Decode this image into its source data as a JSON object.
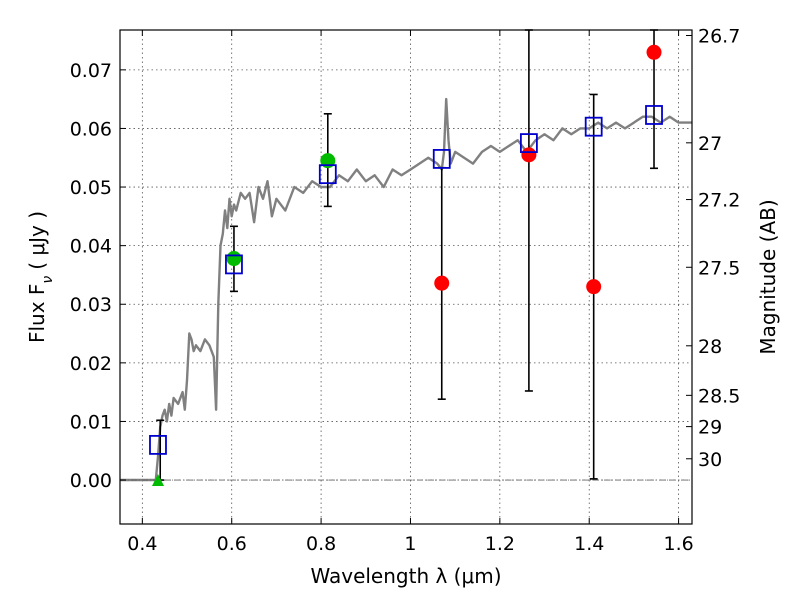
{
  "chart_data": {
    "type": "scatter",
    "title": "",
    "xlabel": "Wavelength  λ (μm)",
    "ylabel": "Flux  F",
    "ylabel_sub": "ν",
    "ylabel_unit": "( μJy )",
    "y2label": "Magnitude (AB)",
    "xlim": [
      0.35,
      1.63
    ],
    "ylim": [
      -0.0075,
      0.0768
    ],
    "grid": true,
    "x_ticks": [
      {
        "value": 0.4,
        "label": "0.4"
      },
      {
        "value": 0.6,
        "label": "0.6"
      },
      {
        "value": 0.8,
        "label": "0.8"
      },
      {
        "value": 1.0,
        "label": "1"
      },
      {
        "value": 1.2,
        "label": "1.2"
      },
      {
        "value": 1.4,
        "label": "1.4"
      },
      {
        "value": 1.6,
        "label": "1.6"
      }
    ],
    "y_ticks": [
      {
        "value": 0.0,
        "label": "0.00"
      },
      {
        "value": 0.01,
        "label": "0.01"
      },
      {
        "value": 0.02,
        "label": "0.02"
      },
      {
        "value": 0.03,
        "label": "0.03"
      },
      {
        "value": 0.04,
        "label": "0.04"
      },
      {
        "value": 0.05,
        "label": "0.05"
      },
      {
        "value": 0.06,
        "label": "0.06"
      },
      {
        "value": 0.07,
        "label": "0.07"
      }
    ],
    "mag_ticks": [
      {
        "mag": 26.7,
        "label": "26.7"
      },
      {
        "mag": 27.0,
        "label": "27"
      },
      {
        "mag": 27.2,
        "label": "27.2"
      },
      {
        "mag": 27.5,
        "label": "27.5"
      },
      {
        "mag": 28.0,
        "label": "28"
      },
      {
        "mag": 28.5,
        "label": "28.5"
      },
      {
        "mag": 29.0,
        "label": "29"
      },
      {
        "mag": 30.0,
        "label": "30"
      }
    ],
    "colors": {
      "spectrum": "#808080",
      "model": "#0000cc",
      "detection": "#ff0000",
      "green": "#00bb00",
      "errorbar": "#000000"
    },
    "spectrum": {
      "x": [
        0.35,
        0.425,
        0.43,
        0.435,
        0.44,
        0.445,
        0.45,
        0.455,
        0.46,
        0.465,
        0.47,
        0.48,
        0.49,
        0.495,
        0.5,
        0.505,
        0.51,
        0.515,
        0.52,
        0.53,
        0.54,
        0.55,
        0.56,
        0.565,
        0.57,
        0.575,
        0.58,
        0.585,
        0.59,
        0.595,
        0.6,
        0.605,
        0.61,
        0.62,
        0.63,
        0.64,
        0.65,
        0.66,
        0.67,
        0.68,
        0.69,
        0.7,
        0.72,
        0.74,
        0.76,
        0.78,
        0.8,
        0.82,
        0.84,
        0.86,
        0.88,
        0.9,
        0.92,
        0.94,
        0.96,
        0.98,
        1.0,
        1.02,
        1.04,
        1.06,
        1.07,
        1.075,
        1.08,
        1.085,
        1.09,
        1.1,
        1.12,
        1.14,
        1.16,
        1.18,
        1.2,
        1.22,
        1.24,
        1.26,
        1.28,
        1.3,
        1.32,
        1.34,
        1.36,
        1.38,
        1.4,
        1.42,
        1.44,
        1.46,
        1.48,
        1.5,
        1.52,
        1.54,
        1.56,
        1.58,
        1.6,
        1.63
      ],
      "y": [
        0.0,
        0.0,
        0.0,
        0.004,
        0.009,
        0.011,
        0.012,
        0.01,
        0.013,
        0.011,
        0.014,
        0.013,
        0.015,
        0.012,
        0.017,
        0.025,
        0.024,
        0.022,
        0.023,
        0.022,
        0.024,
        0.023,
        0.021,
        0.012,
        0.03,
        0.04,
        0.042,
        0.046,
        0.043,
        0.048,
        0.045,
        0.047,
        0.046,
        0.049,
        0.048,
        0.049,
        0.044,
        0.05,
        0.048,
        0.051,
        0.045,
        0.048,
        0.046,
        0.05,
        0.049,
        0.051,
        0.05,
        0.05,
        0.052,
        0.051,
        0.053,
        0.051,
        0.052,
        0.05,
        0.053,
        0.052,
        0.053,
        0.054,
        0.055,
        0.054,
        0.053,
        0.056,
        0.065,
        0.058,
        0.054,
        0.056,
        0.055,
        0.054,
        0.056,
        0.057,
        0.056,
        0.057,
        0.058,
        0.056,
        0.058,
        0.059,
        0.058,
        0.06,
        0.059,
        0.06,
        0.06,
        0.061,
        0.06,
        0.061,
        0.06,
        0.061,
        0.062,
        0.062,
        0.061,
        0.062,
        0.061,
        0.061
      ]
    },
    "model_points": {
      "x": [
        0.435,
        0.605,
        0.815,
        1.07,
        1.265,
        1.41,
        1.545
      ],
      "y": [
        0.006,
        0.0368,
        0.0522,
        0.0548,
        0.0575,
        0.0603,
        0.0623
      ]
    },
    "detections": {
      "x": [
        1.07,
        1.265,
        1.41,
        1.545
      ],
      "y": [
        0.0336,
        0.0555,
        0.033,
        0.073
      ]
    },
    "green_points": {
      "x": [
        0.605,
        0.815
      ],
      "y": [
        0.0378,
        0.0545
      ]
    },
    "green_triangle": {
      "x": [
        0.435
      ],
      "y": [
        0.0
      ]
    },
    "errorbars": [
      {
        "x": 0.44,
        "low": 0.0,
        "high": 0.0102
      },
      {
        "x": 0.605,
        "low": 0.0322,
        "high": 0.0433
      },
      {
        "x": 0.815,
        "low": 0.0467,
        "high": 0.0625
      },
      {
        "x": 1.07,
        "low": 0.0138,
        "high": 0.0533
      },
      {
        "x": 1.265,
        "low": 0.0152,
        "high": 0.0768
      },
      {
        "x": 1.41,
        "low": 0.0002,
        "high": 0.0658
      },
      {
        "x": 1.545,
        "low": 0.0532,
        "high": 0.0768
      }
    ]
  }
}
